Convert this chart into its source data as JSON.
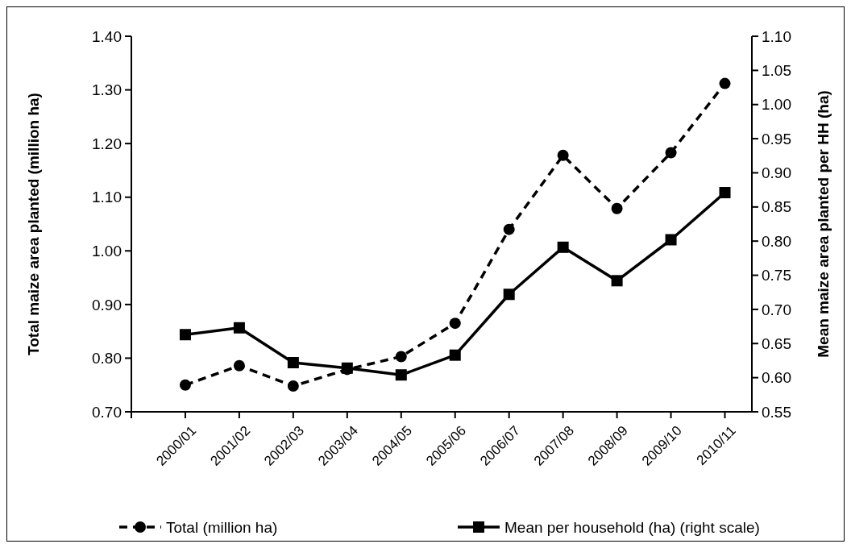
{
  "chart_data": {
    "type": "line",
    "ylabel": "Total maize area planted (million ha)",
    "y2label": "Mean maize area planted per HH (ha)",
    "categories": [
      "2000/01",
      "2001/02",
      "2002/03",
      "2003/04",
      "2004/05",
      "2005/06",
      "2006/07",
      "2007/08",
      "2008/09",
      "2009/10",
      "2010/11"
    ],
    "series": [
      {
        "name": "Total (million ha)",
        "color": "#000000",
        "marker": "circle",
        "line_style": "dashed",
        "values": [
          0.75,
          0.786,
          0.748,
          0.779,
          0.803,
          0.865,
          1.04,
          1.178,
          1.079,
          1.183,
          1.312
        ]
      },
      {
        "name": "Mean per household (ha) (right scale)",
        "color": "#000000",
        "marker": "square",
        "line_style": "solid",
        "axis": "y2",
        "values": [
          0.663,
          0.673,
          0.622,
          0.614,
          0.604,
          0.633,
          0.722,
          0.791,
          0.742,
          0.802,
          0.871
        ]
      }
    ],
    "ylim": [
      0.7,
      1.4
    ],
    "yticks": [
      {
        "value": 0.7,
        "label": "0.70"
      },
      {
        "value": 0.8,
        "label": "0.80"
      },
      {
        "value": 0.9,
        "label": "0.90"
      },
      {
        "value": 1.0,
        "label": "1.00"
      },
      {
        "value": 1.1,
        "label": "1.10"
      },
      {
        "value": 1.2,
        "label": "1.20"
      },
      {
        "value": 1.3,
        "label": "1.30"
      },
      {
        "value": 1.4,
        "label": "1.40"
      }
    ],
    "y2lim": [
      0.55,
      1.1
    ],
    "y2ticks": [
      {
        "value": 0.55,
        "label": "0.55"
      },
      {
        "value": 0.6,
        "label": "0.60"
      },
      {
        "value": 0.65,
        "label": "0.65"
      },
      {
        "value": 0.7,
        "label": "0.70"
      },
      {
        "value": 0.75,
        "label": "0.75"
      },
      {
        "value": 0.8,
        "label": "0.80"
      },
      {
        "value": 0.85,
        "label": "0.85"
      },
      {
        "value": 0.9,
        "label": "0.90"
      },
      {
        "value": 0.95,
        "label": "0.95"
      },
      {
        "value": 1.0,
        "label": "1.00"
      },
      {
        "value": 1.05,
        "label": "1.05"
      },
      {
        "value": 1.1,
        "label": "1.10"
      }
    ],
    "legend": "bottom",
    "grid": false
  }
}
